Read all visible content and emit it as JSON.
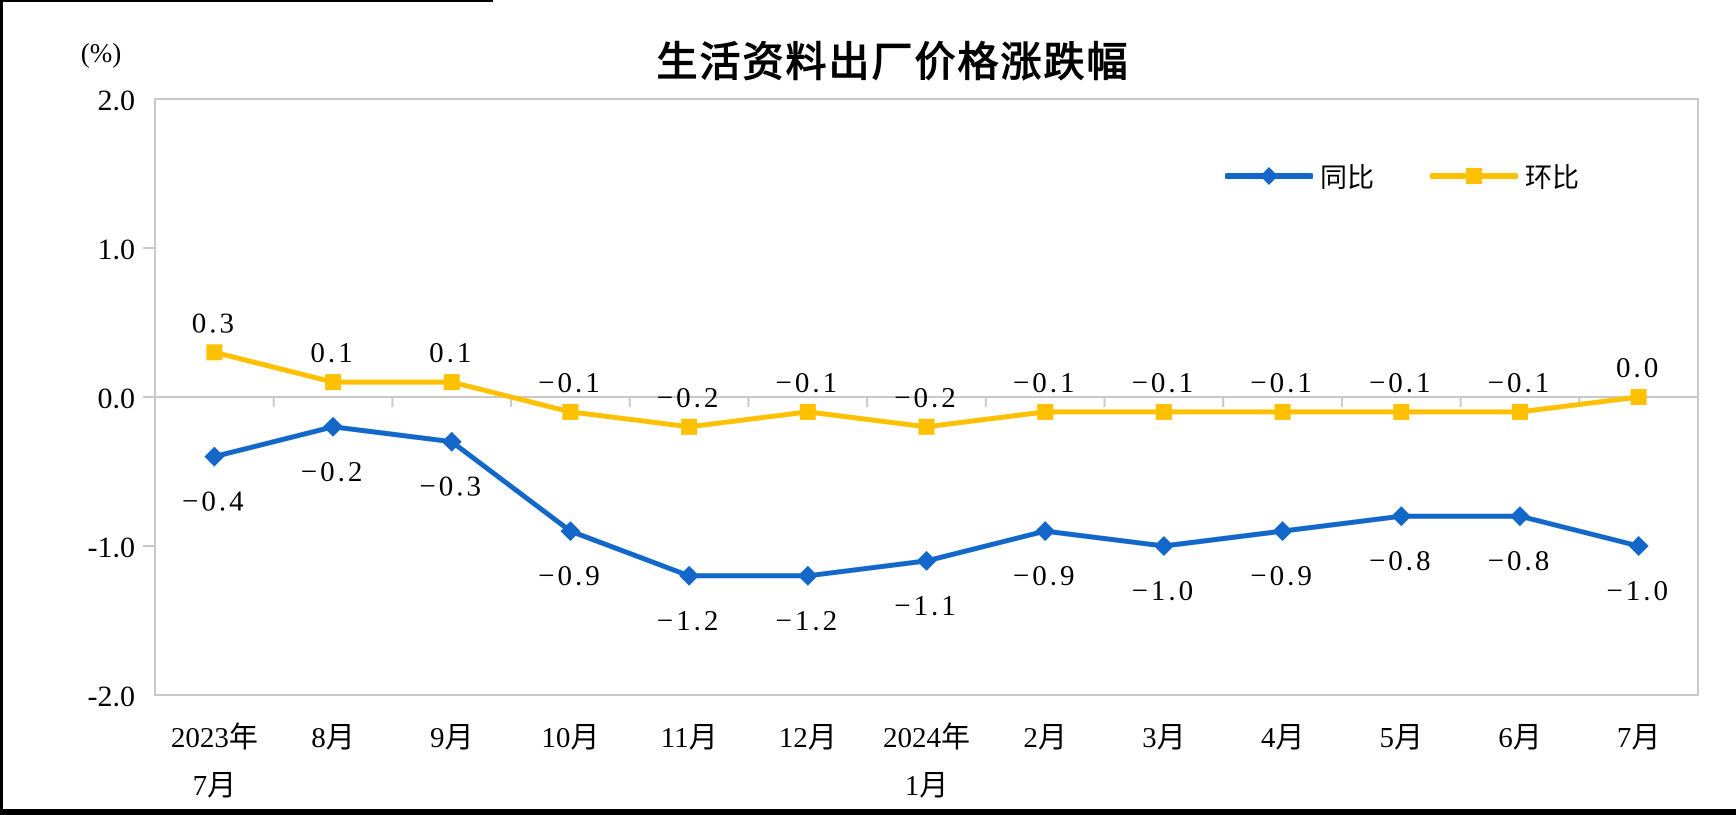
{
  "chart_data": {
    "type": "line",
    "title": "生活资料出厂价格涨跌幅",
    "unit_label": "(%)",
    "categories": [
      [
        "2023年",
        "7月"
      ],
      "8月",
      "9月",
      "10月",
      "11月",
      "12月",
      [
        "2024年",
        "1月"
      ],
      "2月",
      "3月",
      "4月",
      "5月",
      "6月",
      "7月"
    ],
    "series": [
      {
        "name": "同比",
        "color": "#1267C8",
        "marker": "diamond",
        "label_position": "below",
        "values": [
          -0.4,
          -0.2,
          -0.3,
          -0.9,
          -1.2,
          -1.2,
          -1.1,
          -0.9,
          -1.0,
          -0.9,
          -0.8,
          -0.8,
          -1.0
        ]
      },
      {
        "name": "环比",
        "color": "#FFC000",
        "marker": "square",
        "label_position": "above",
        "values": [
          0.3,
          0.1,
          0.1,
          -0.1,
          -0.2,
          -0.1,
          -0.2,
          -0.1,
          -0.1,
          -0.1,
          -0.1,
          -0.1,
          0.0
        ]
      }
    ],
    "y_ticks": [
      2.0,
      1.0,
      0.0,
      -1.0,
      -2.0
    ],
    "ylim": [
      -2.0,
      2.0
    ],
    "grid": false,
    "legend_position": "top-right-inside",
    "axis_color": "#C9C9C9",
    "text_color": "#000000"
  }
}
